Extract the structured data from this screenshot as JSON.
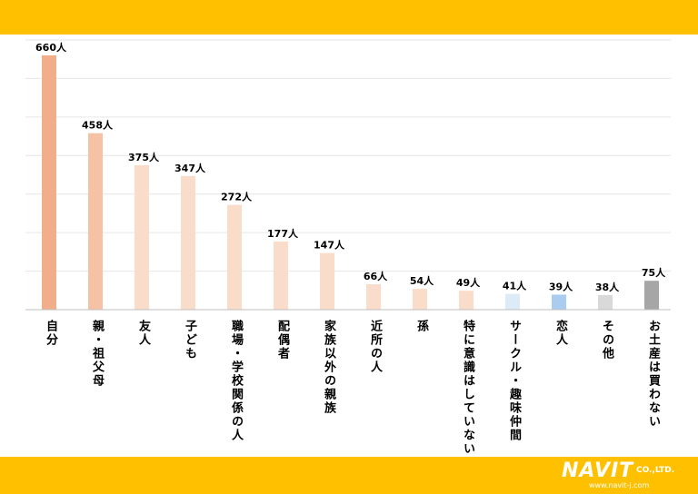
{
  "chart_data": {
    "type": "bar",
    "unit": "人",
    "categories": [
      "自分",
      "親・祖父母",
      "友人",
      "子ども",
      "職場・学校関係の人",
      "配偶者",
      "家族以外の親族",
      "近所の人",
      "孫",
      "特に意識はしていない",
      "サークル・趣味仲間",
      "恋人",
      "その他",
      "お土産は買わない"
    ],
    "values": [
      660,
      458,
      375,
      347,
      272,
      177,
      147,
      66,
      54,
      49,
      41,
      39,
      38,
      75
    ],
    "data_labels": [
      "660人",
      "458人",
      "375人",
      "347人",
      "272人",
      "177人",
      "147人",
      "66人",
      "54人",
      "49人",
      "41人",
      "39人",
      "38人",
      "75人"
    ],
    "colors": [
      "#F2AD8A",
      "#F6C2A6",
      "#FADCCB",
      "#FADCCB",
      "#FADCCB",
      "#FADCCB",
      "#FADCCB",
      "#FADCCB",
      "#FADCCB",
      "#FADCCB",
      "#DDEBF7",
      "#A9CCEF",
      "#D9D9D9",
      "#A6A6A6"
    ],
    "ylim": [
      0,
      700
    ],
    "grid": true,
    "title": "",
    "xlabel": "",
    "ylabel": ""
  },
  "logo": {
    "brand": "NAVIT",
    "suffix": "CO.,LTD.",
    "url": "www.navit-j.com"
  }
}
